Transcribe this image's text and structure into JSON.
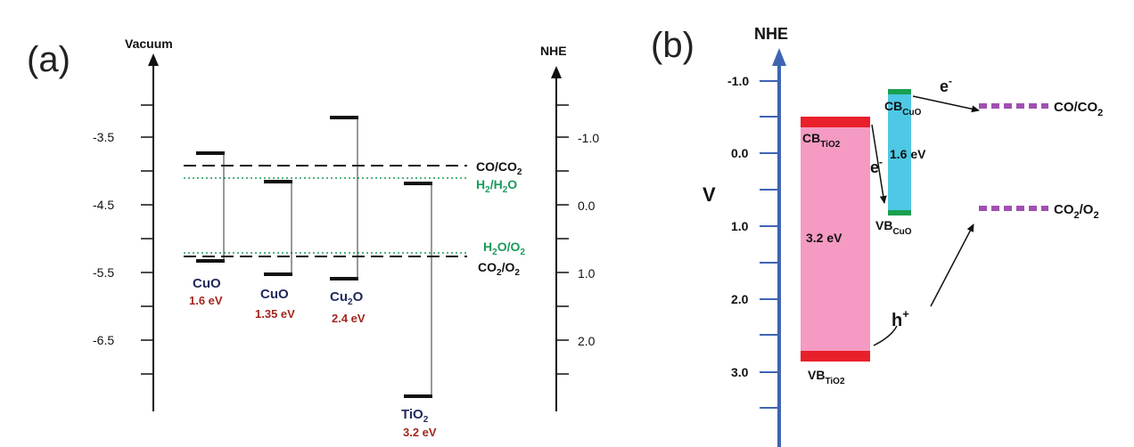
{
  "panel_a": {
    "label": "(a)",
    "left_axis_title": "Vacuum",
    "right_axis_title": "NHE",
    "left_ticks": [
      "-3.5",
      "-4.5",
      "-5.5",
      "-6.5"
    ],
    "right_ticks": [
      "-1.0",
      "0.0",
      "1.0",
      "2.0"
    ],
    "levels": {
      "co_co2": "CO/CO",
      "co_co2_sub": "2",
      "h2_h2o_a": "H",
      "h2_h2o_sub": "2",
      "h2_h2o_b": "/H",
      "h2_h2o_sub2": "2",
      "h2_h2o_c": "O",
      "h2o_o2_a": "H",
      "h2o_o2_sub": "2",
      "h2o_o2_b": "O/O",
      "h2o_o2_sub2": "2",
      "co2_o2_a": "CO",
      "co2_o2_sub": "2",
      "co2_o2_b": "/O",
      "co2_o2_sub2": "2"
    },
    "materials": [
      {
        "name": "CuO",
        "sub": "",
        "gap": "1.6 eV"
      },
      {
        "name": "CuO",
        "sub": "",
        "gap": "1.35 eV"
      },
      {
        "name": "Cu",
        "sub": "2",
        "name_tail": "O",
        "gap": "2.4 eV"
      },
      {
        "name": "TiO",
        "sub": "2",
        "name_tail": "",
        "gap": "3.2 eV"
      }
    ],
    "colors": {
      "material_name": "#1f2a5a",
      "gap_value": "#a0281e",
      "water_levels": "#1a9a5a"
    }
  },
  "panel_b": {
    "label": "(b)",
    "axis_title": "NHE",
    "y_label": "V",
    "ticks": [
      "-1.0",
      "0.0",
      "1.0",
      "2.0",
      "3.0"
    ],
    "tio2_cb": "CB",
    "tio2_cb_sub": "TiO2",
    "tio2_vb": "VB",
    "tio2_vb_sub": "TiO2",
    "tio2_gap": "3.2 eV",
    "cuo_cb": "CB",
    "cuo_cb_sub": "CuO",
    "cuo_vb": "VB",
    "cuo_vb_sub": "CuO",
    "cuo_gap": "1.6 eV",
    "electron": "e",
    "electron_sup": "-",
    "electron2": "e",
    "electron2_sup": "-",
    "hole": "h",
    "hole_sup": "+",
    "co_co2": "CO/CO",
    "co_co2_sub": "2",
    "co2_o2": "CO",
    "co2_o2_sub": "2",
    "co2_o2_tail": "/O",
    "co2_o2_sub2": "2",
    "colors": {
      "axis": "#3f64b4",
      "tio2_band": "#f59ac2",
      "tio2_edges": "#e8202a",
      "cuo_band": "#4ec8e4",
      "cuo_edges": "#1aa050",
      "levels": "#a050b0"
    }
  }
}
